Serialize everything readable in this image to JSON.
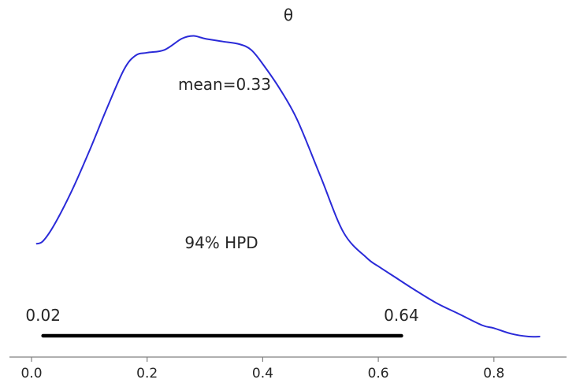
{
  "chart_data": {
    "type": "area",
    "title": "θ",
    "xlabel": "",
    "ylabel": "",
    "xlim": [
      -0.04,
      0.92
    ],
    "ylim": [
      0,
      1.06
    ],
    "xticks": [
      0.0,
      0.2,
      0.4,
      0.6,
      0.8
    ],
    "xtick_labels": [
      "0.0",
      "0.2",
      "0.4",
      "0.6",
      "0.8"
    ],
    "grid": false,
    "series": [
      {
        "color": "#2a2ad8",
        "x": [
          0.008,
          0.02,
          0.04,
          0.07,
          0.1,
          0.13,
          0.16,
          0.18,
          0.2,
          0.23,
          0.26,
          0.28,
          0.3,
          0.33,
          0.36,
          0.38,
          0.4,
          0.43,
          0.46,
          0.5,
          0.54,
          0.58,
          0.6,
          0.63,
          0.66,
          0.7,
          0.74,
          0.78,
          0.8,
          0.83,
          0.86,
          0.88
        ],
        "y": [
          0.33,
          0.34,
          0.4,
          0.52,
          0.66,
          0.81,
          0.95,
          1.0,
          1.01,
          1.02,
          1.06,
          1.07,
          1.06,
          1.05,
          1.04,
          1.02,
          0.97,
          0.88,
          0.77,
          0.57,
          0.37,
          0.28,
          0.25,
          0.21,
          0.17,
          0.12,
          0.08,
          0.04,
          0.03,
          0.01,
          0.0,
          0.0
        ]
      }
    ],
    "mean_label": "mean=0.33",
    "hpd": {
      "label": "94% HPD",
      "low": 0.02,
      "high": 0.64,
      "low_label": "0.02",
      "high_label": "0.64"
    }
  }
}
